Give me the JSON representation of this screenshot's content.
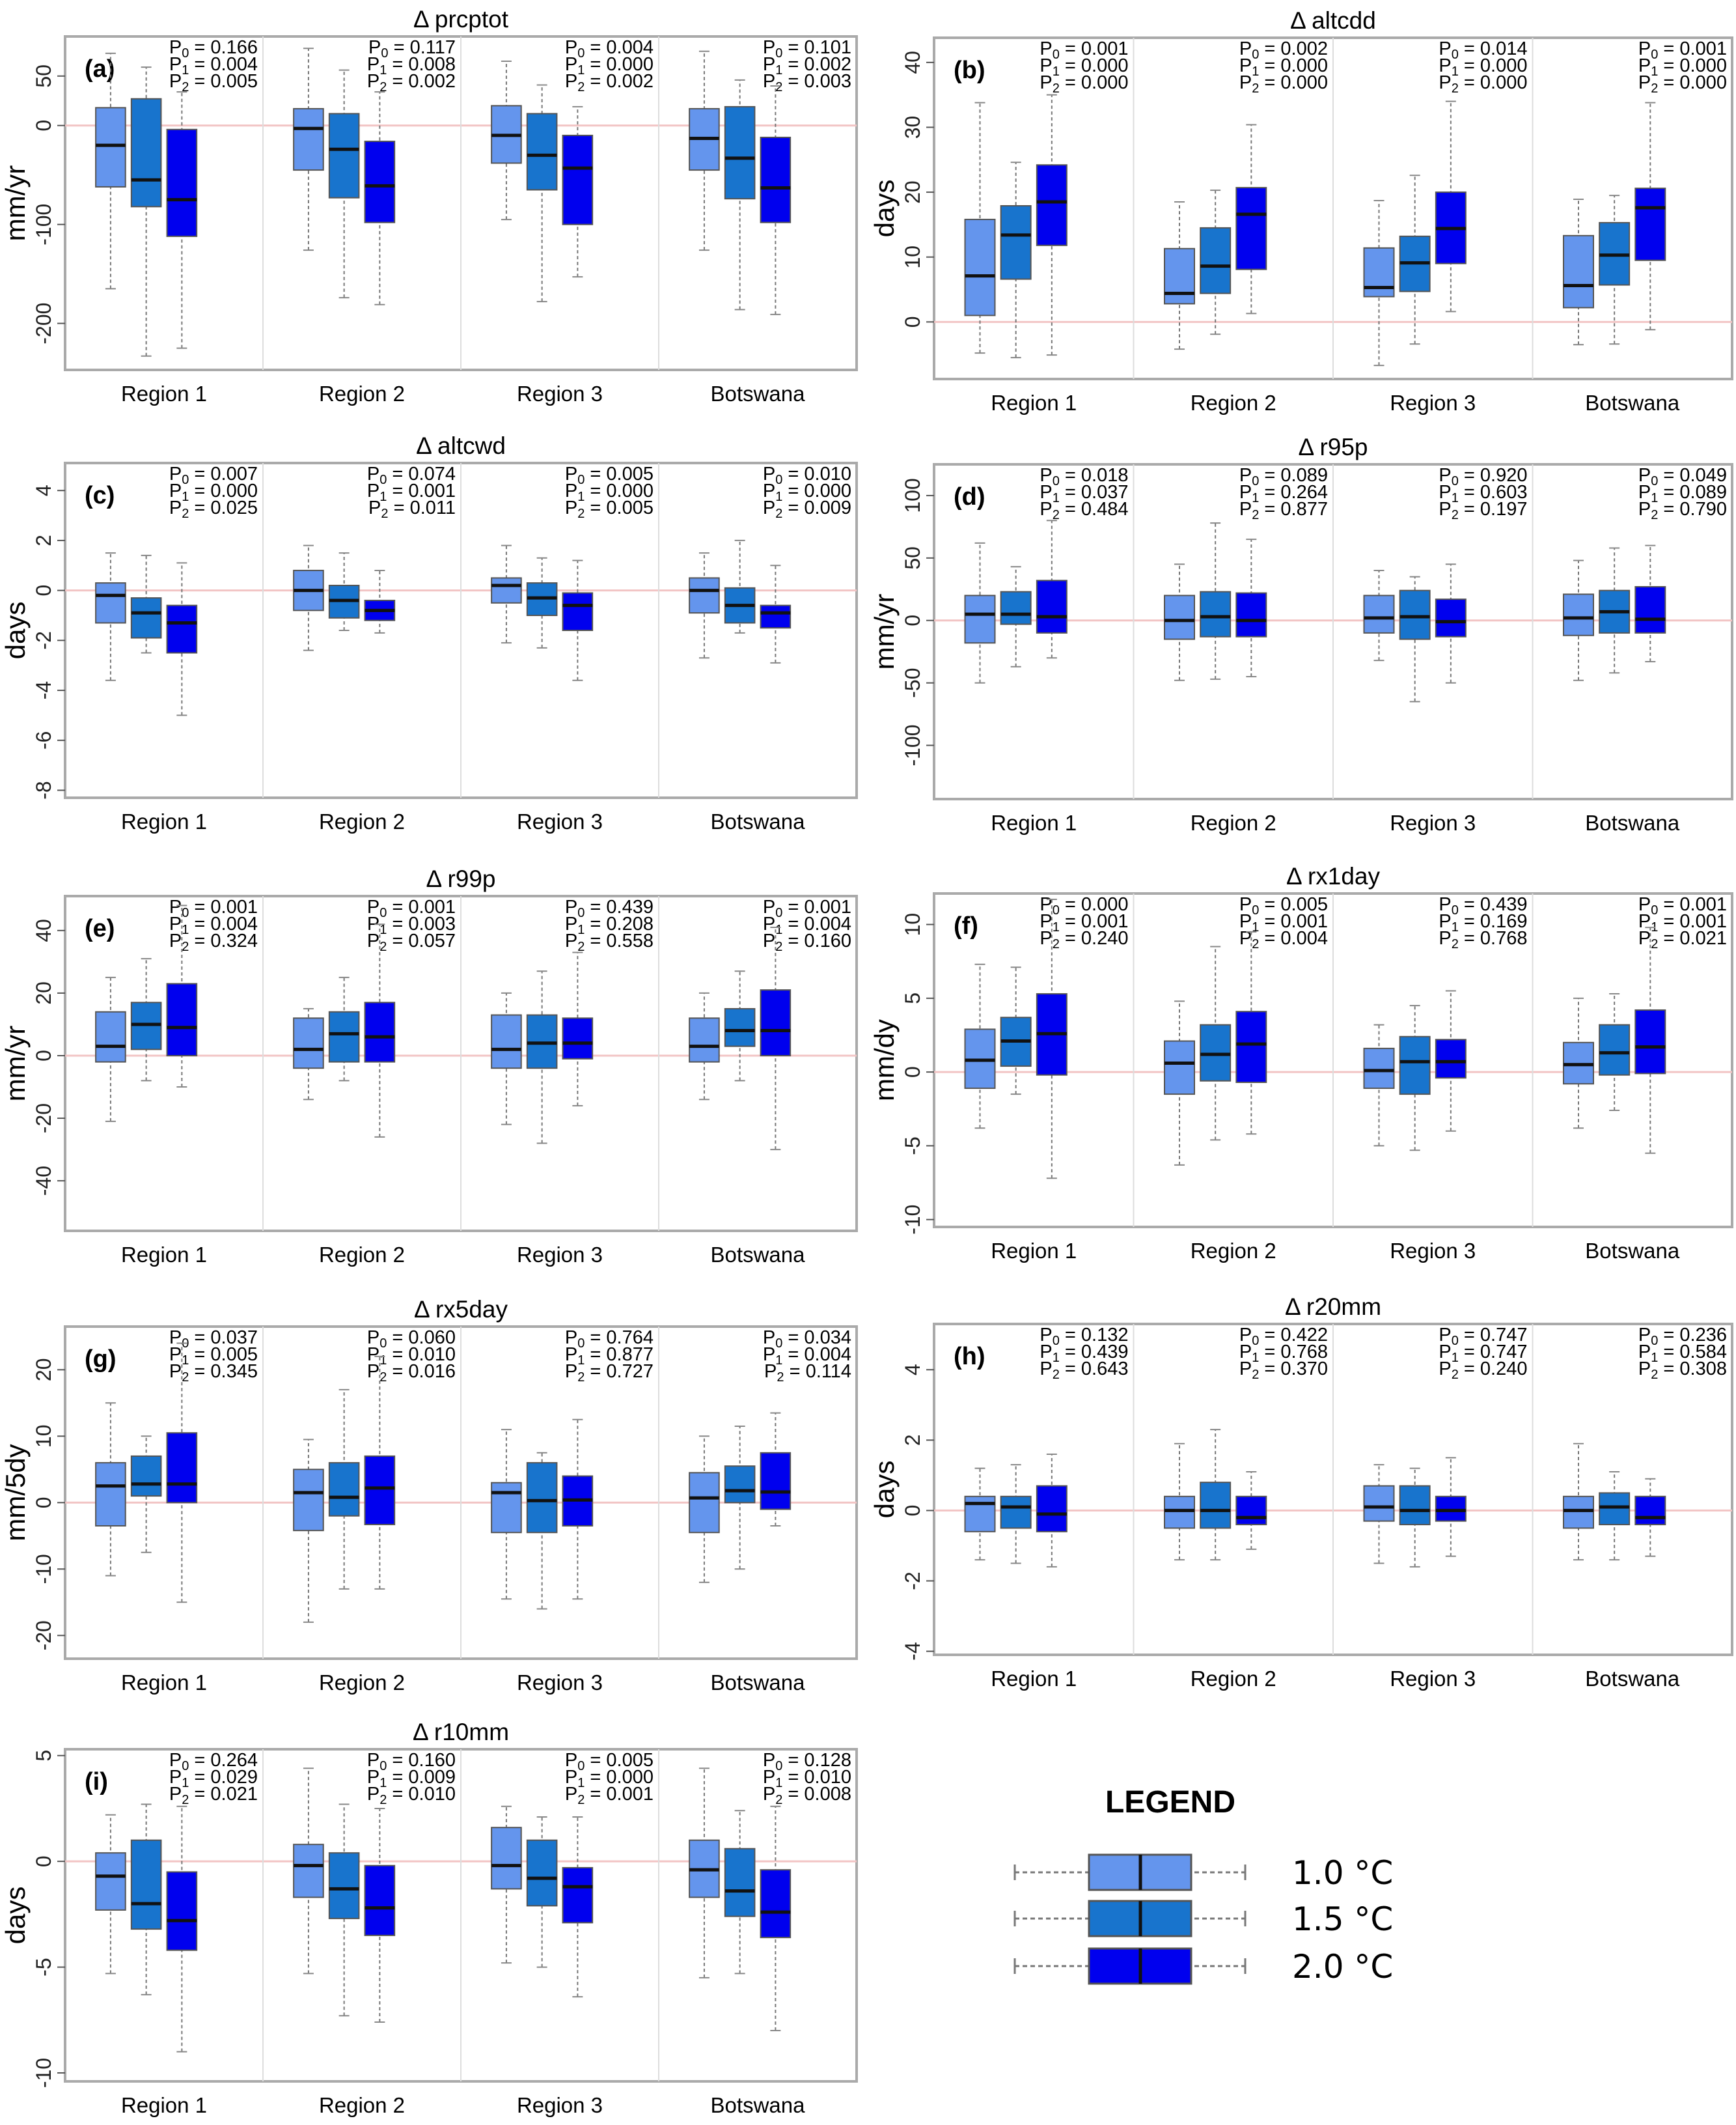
{
  "legend": {
    "title": "LEGEND",
    "items": [
      "1.0 °C",
      "1.5 °C",
      "2.0 °C"
    ]
  },
  "colors": {
    "s1": "#6495ED",
    "s2": "#1874CD",
    "s3": "#0000EE",
    "zero_line": "#F2C4C4"
  },
  "chart_data": [
    {
      "type": "box",
      "panel": "(a)",
      "title": "Δ prcptot",
      "ylabel": "mm/yr",
      "ylim": [
        -247,
        90
      ],
      "yticks": [
        -200,
        -100,
        0,
        50
      ],
      "categories": [
        "Region 1",
        "Region 2",
        "Region 3",
        "Botswana"
      ],
      "series": [
        "1.0 °C",
        "1.5 °C",
        "2.0 °C"
      ],
      "pvalues": [
        [
          "0.166",
          "0.004",
          "0.005"
        ],
        [
          "0.117",
          "0.008",
          "0.002"
        ],
        [
          "0.004",
          "0.000",
          "0.002"
        ],
        [
          "0.101",
          "0.002",
          "0.003"
        ]
      ],
      "boxes": [
        [
          [
            -165,
            -62,
            -20,
            18,
            73
          ],
          [
            -233,
            -82,
            -55,
            27,
            59
          ],
          [
            -225,
            -112,
            -75,
            -4,
            34
          ]
        ],
        [
          [
            -126,
            -45,
            -3,
            17,
            78
          ],
          [
            -174,
            -73,
            -24,
            12,
            56
          ],
          [
            -181,
            -98,
            -61,
            -16,
            34
          ]
        ],
        [
          [
            -95,
            -38,
            -10,
            20,
            65
          ],
          [
            -178,
            -65,
            -30,
            12,
            41
          ],
          [
            -153,
            -100,
            -43,
            -10,
            19
          ]
        ],
        [
          [
            -126,
            -45,
            -13,
            17,
            75
          ],
          [
            -186,
            -74,
            -33,
            19,
            46
          ],
          [
            -191,
            -98,
            -63,
            -12,
            40
          ]
        ]
      ]
    },
    {
      "type": "box",
      "panel": "(b)",
      "title": "Δ altcdd",
      "ylabel": "days",
      "ylim": [
        -8.8,
        43.8
      ],
      "yticks": [
        0,
        10,
        20,
        30,
        40
      ],
      "categories": [
        "Region 1",
        "Region 2",
        "Region 3",
        "Botswana"
      ],
      "series": [
        "1.0 °C",
        "1.5 °C",
        "2.0 °C"
      ],
      "pvalues": [
        [
          "0.001",
          "0.000",
          "0.000"
        ],
        [
          "0.002",
          "0.000",
          "0.000"
        ],
        [
          "0.014",
          "0.000",
          "0.000"
        ],
        [
          "0.001",
          "0.000",
          "0.000"
        ]
      ],
      "boxes": [
        [
          [
            -4.8,
            1,
            7.1,
            15.8,
            33.8
          ],
          [
            -5.5,
            6.6,
            13.4,
            17.9,
            24.6
          ],
          [
            -5.1,
            11.8,
            18.5,
            24.2,
            35
          ]
        ],
        [
          [
            -4.2,
            2.8,
            4.4,
            11.3,
            18.5
          ],
          [
            -1.9,
            4.4,
            8.6,
            14.5,
            20.3
          ],
          [
            1.3,
            8.1,
            16.6,
            20.7,
            30.4
          ]
        ],
        [
          [
            -6.7,
            3.9,
            5.3,
            11.4,
            18.7
          ],
          [
            -3.4,
            4.7,
            9.1,
            13.2,
            22.6
          ],
          [
            1.6,
            9,
            14.4,
            20,
            34
          ]
        ],
        [
          [
            -3.5,
            2.2,
            5.6,
            13.3,
            18.9
          ],
          [
            -3.4,
            5.7,
            10.3,
            15.3,
            19.5
          ],
          [
            -1.2,
            9.5,
            17.6,
            20.6,
            33.8
          ]
        ]
      ]
    },
    {
      "type": "box",
      "panel": "(c)",
      "title": "Δ altcwd",
      "ylabel": "days",
      "ylim": [
        -8.3,
        5.1
      ],
      "yticks": [
        4,
        2,
        0,
        -2,
        -4,
        -6,
        -8
      ],
      "categories": [
        "Region 1",
        "Region 2",
        "Region 3",
        "Botswana"
      ],
      "series": [
        "1.0 °C",
        "1.5 °C",
        "2.0 °C"
      ],
      "pvalues": [
        [
          "0.007",
          "0.000",
          "0.025"
        ],
        [
          "0.074",
          "0.001",
          "0.011"
        ],
        [
          "0.005",
          "0.000",
          "0.005"
        ],
        [
          "0.010",
          "0.000",
          "0.009"
        ]
      ],
      "boxes": [
        [
          [
            -3.6,
            -1.3,
            -0.2,
            0.3,
            1.5
          ],
          [
            -2.5,
            -1.9,
            -0.9,
            -0.3,
            1.4
          ],
          [
            -5,
            -2.5,
            -1.3,
            -0.6,
            1.1
          ]
        ],
        [
          [
            -2.4,
            -0.8,
            0,
            0.8,
            1.8
          ],
          [
            -1.6,
            -1.1,
            -0.4,
            0.2,
            1.5
          ],
          [
            -1.7,
            -1.2,
            -0.8,
            -0.4,
            0.8
          ]
        ],
        [
          [
            -2.1,
            -0.5,
            0.2,
            0.5,
            1.8
          ],
          [
            -2.3,
            -1,
            -0.3,
            0.3,
            1.3
          ],
          [
            -3.6,
            -1.6,
            -0.6,
            -0.1,
            1.2
          ]
        ],
        [
          [
            -2.7,
            -0.9,
            0,
            0.5,
            1.5
          ],
          [
            -1.7,
            -1.3,
            -0.6,
            0.1,
            2
          ],
          [
            -2.9,
            -1.5,
            -0.9,
            -0.6,
            1
          ]
        ]
      ]
    },
    {
      "type": "box",
      "panel": "(d)",
      "title": "Δ r95p",
      "ylabel": "mm/yr",
      "ylim": [
        -143,
        125
      ],
      "yticks": [
        100,
        50,
        0,
        -50,
        -100
      ],
      "categories": [
        "Region 1",
        "Region 2",
        "Region 3",
        "Botswana"
      ],
      "series": [
        "1.0 °C",
        "1.5 °C",
        "2.0 °C"
      ],
      "pvalues": [
        [
          "0.018",
          "0.037",
          "0.484"
        ],
        [
          "0.089",
          "0.264",
          "0.877"
        ],
        [
          "0.920",
          "0.603",
          "0.197"
        ],
        [
          "0.049",
          "0.089",
          "0.790"
        ]
      ],
      "boxes": [
        [
          [
            -50,
            -18,
            5,
            20,
            62
          ],
          [
            -37,
            -3,
            5,
            23,
            43
          ],
          [
            -30,
            -10,
            3,
            32,
            80
          ]
        ],
        [
          [
            -48,
            -15,
            0,
            20,
            45
          ],
          [
            -47,
            -13,
            3,
            23,
            78
          ],
          [
            -45,
            -13,
            0,
            22,
            65
          ]
        ],
        [
          [
            -32,
            -10,
            2,
            20,
            40
          ],
          [
            -65,
            -15,
            3,
            24,
            35
          ],
          [
            -50,
            -13,
            -1,
            17,
            45
          ]
        ],
        [
          [
            -48,
            -12,
            2,
            21,
            48
          ],
          [
            -42,
            -10,
            7,
            24,
            58
          ],
          [
            -33,
            -10,
            1,
            27,
            60
          ]
        ]
      ]
    },
    {
      "type": "box",
      "panel": "(e)",
      "title": "Δ r99p",
      "ylabel": "mm/yr",
      "ylim": [
        -56,
        51
      ],
      "yticks": [
        40,
        20,
        0,
        -20,
        -40
      ],
      "categories": [
        "Region 1",
        "Region 2",
        "Region 3",
        "Botswana"
      ],
      "series": [
        "1.0 °C",
        "1.5 °C",
        "2.0 °C"
      ],
      "pvalues": [
        [
          "0.001",
          "0.004",
          "0.324"
        ],
        [
          "0.001",
          "0.003",
          "0.057"
        ],
        [
          "0.439",
          "0.208",
          "0.558"
        ],
        [
          "0.001",
          "0.004",
          "0.160"
        ]
      ],
      "boxes": [
        [
          [
            -21,
            -2,
            3,
            14,
            25
          ],
          [
            -8,
            2,
            10,
            17,
            31
          ],
          [
            -10,
            0,
            9,
            23,
            48
          ]
        ],
        [
          [
            -14,
            -4,
            2,
            12,
            15
          ],
          [
            -8,
            -2,
            7,
            14,
            25
          ],
          [
            -26,
            -2,
            6,
            17,
            42
          ]
        ],
        [
          [
            -22,
            -4,
            2,
            13,
            20
          ],
          [
            -28,
            -4,
            4,
            13,
            27
          ],
          [
            -16,
            -1,
            4,
            12,
            33
          ]
        ],
        [
          [
            -14,
            -2,
            3,
            12,
            20
          ],
          [
            -8,
            3,
            8,
            15,
            27
          ],
          [
            -30,
            0,
            8,
            21,
            41
          ]
        ]
      ]
    },
    {
      "type": "box",
      "panel": "(f)",
      "title": "Δ rx1day",
      "ylabel": "mm/dy",
      "ylim": [
        -10.5,
        12.1
      ],
      "yticks": [
        10,
        5,
        0,
        -5,
        -10
      ],
      "categories": [
        "Region 1",
        "Region 2",
        "Region 3",
        "Botswana"
      ],
      "series": [
        "1.0 °C",
        "1.5 °C",
        "2.0 °C"
      ],
      "pvalues": [
        [
          "0.000",
          "0.001",
          "0.240"
        ],
        [
          "0.005",
          "0.001",
          "0.004"
        ],
        [
          "0.439",
          "0.169",
          "0.768"
        ],
        [
          "0.001",
          "0.001",
          "0.021"
        ]
      ],
      "boxes": [
        [
          [
            -3.8,
            -1.1,
            0.8,
            2.9,
            7.3
          ],
          [
            -1.5,
            0.4,
            2.1,
            3.7,
            7.1
          ],
          [
            -7.2,
            -0.2,
            2.6,
            5.3,
            11.7
          ]
        ],
        [
          [
            -6.3,
            -1.5,
            0.6,
            2.1,
            4.8
          ],
          [
            -4.6,
            -0.6,
            1.2,
            3.2,
            8.5
          ],
          [
            -4.2,
            -0.7,
            1.9,
            4.1,
            9.5
          ]
        ],
        [
          [
            -5,
            -1.1,
            0.1,
            1.6,
            3.2
          ],
          [
            -5.3,
            -1.5,
            0.7,
            2.4,
            4.5
          ],
          [
            -4,
            -0.4,
            0.7,
            2.2,
            5.5
          ]
        ],
        [
          [
            -3.8,
            -0.8,
            0.5,
            2,
            5
          ],
          [
            -2.6,
            -0.2,
            1.3,
            3.2,
            5.3
          ],
          [
            -5.5,
            -0.1,
            1.7,
            4.2,
            9.8
          ]
        ]
      ]
    },
    {
      "type": "box",
      "panel": "(g)",
      "title": "Δ rx5day",
      "ylabel": "mm/5dy",
      "ylim": [
        -23.5,
        26.5
      ],
      "yticks": [
        20,
        10,
        0,
        -10,
        -20
      ],
      "categories": [
        "Region 1",
        "Region 2",
        "Region 3",
        "Botswana"
      ],
      "series": [
        "1.0 °C",
        "1.5 °C",
        "2.0 °C"
      ],
      "pvalues": [
        [
          "0.037",
          "0.005",
          "0.345"
        ],
        [
          "0.060",
          "0.010",
          "0.016"
        ],
        [
          "0.764",
          "0.877",
          "0.727"
        ],
        [
          "0.034",
          "0.004",
          "0.114"
        ]
      ],
      "boxes": [
        [
          [
            -11,
            -3.5,
            2.5,
            6,
            15
          ],
          [
            -7.5,
            1,
            2.8,
            7,
            10
          ],
          [
            -15,
            0,
            2.8,
            10.5,
            24
          ]
        ],
        [
          [
            -18,
            -4.2,
            1.5,
            5,
            9.5
          ],
          [
            -13,
            -2,
            0.8,
            6,
            17
          ],
          [
            -13,
            -3.3,
            2.2,
            7,
            22
          ]
        ],
        [
          [
            -14.5,
            -4.5,
            1.5,
            3,
            11
          ],
          [
            -16,
            -4.5,
            0.3,
            6,
            7.5
          ],
          [
            -14.5,
            -3.5,
            0.4,
            4,
            12.5
          ]
        ],
        [
          [
            -12,
            -4.5,
            0.7,
            4.5,
            10
          ],
          [
            -10,
            0,
            1.8,
            5.5,
            11.5
          ],
          [
            -3.5,
            -1,
            1.6,
            7.5,
            13.5
          ]
        ]
      ]
    },
    {
      "type": "box",
      "panel": "(h)",
      "title": "Δ r20mm",
      "ylabel": "days",
      "ylim": [
        -4.1,
        5.3
      ],
      "yticks": [
        4,
        2,
        0,
        -2,
        -4
      ],
      "categories": [
        "Region 1",
        "Region 2",
        "Region 3",
        "Botswana"
      ],
      "series": [
        "1.0 °C",
        "1.5 °C",
        "2.0 °C"
      ],
      "pvalues": [
        [
          "0.132",
          "0.439",
          "0.643"
        ],
        [
          "0.422",
          "0.768",
          "0.370"
        ],
        [
          "0.747",
          "0.747",
          "0.240"
        ],
        [
          "0.236",
          "0.584",
          "0.308"
        ]
      ],
      "boxes": [
        [
          [
            -1.4,
            -0.6,
            0.2,
            0.4,
            1.2
          ],
          [
            -1.5,
            -0.5,
            0.1,
            0.4,
            1.3
          ],
          [
            -1.6,
            -0.6,
            -0.1,
            0.7,
            1.6
          ]
        ],
        [
          [
            -1.4,
            -0.5,
            0,
            0.4,
            1.9
          ],
          [
            -1.4,
            -0.5,
            0,
            0.8,
            2.3
          ],
          [
            -1.1,
            -0.4,
            -0.2,
            0.4,
            1.1
          ]
        ],
        [
          [
            -1.5,
            -0.3,
            0.1,
            0.7,
            1.3
          ],
          [
            -1.6,
            -0.4,
            0,
            0.7,
            1.2
          ],
          [
            -1.3,
            -0.3,
            0,
            0.4,
            1.5
          ]
        ],
        [
          [
            -1.4,
            -0.5,
            0,
            0.4,
            1.9
          ],
          [
            -1.4,
            -0.4,
            0.1,
            0.5,
            1.1
          ],
          [
            -1.3,
            -0.4,
            -0.2,
            0.4,
            0.9
          ]
        ]
      ]
    },
    {
      "type": "box",
      "panel": "(i)",
      "title": "Δ r10mm",
      "ylabel": "days",
      "ylim": [
        -10.4,
        5.3
      ],
      "yticks": [
        5,
        0,
        -5,
        -10
      ],
      "categories": [
        "Region 1",
        "Region 2",
        "Region 3",
        "Botswana"
      ],
      "series": [
        "1.0 °C",
        "1.5 °C",
        "2.0 °C"
      ],
      "pvalues": [
        [
          "0.264",
          "0.029",
          "0.021"
        ],
        [
          "0.160",
          "0.009",
          "0.010"
        ],
        [
          "0.005",
          "0.000",
          "0.001"
        ],
        [
          "0.128",
          "0.010",
          "0.008"
        ]
      ],
      "boxes": [
        [
          [
            -5.3,
            -2.3,
            -0.7,
            0.4,
            2.2
          ],
          [
            -6.3,
            -3.2,
            -2,
            1,
            2.7
          ],
          [
            -9,
            -4.2,
            -2.8,
            -0.5,
            2.6
          ]
        ],
        [
          [
            -5.3,
            -1.7,
            -0.2,
            0.8,
            4.4
          ],
          [
            -7.3,
            -2.7,
            -1.3,
            0.4,
            2.7
          ],
          [
            -7.6,
            -3.5,
            -2.2,
            -0.2,
            2.5
          ]
        ],
        [
          [
            -4.8,
            -1.3,
            -0.2,
            1.6,
            2.6
          ],
          [
            -5,
            -2.1,
            -0.8,
            1,
            2.1
          ],
          [
            -6.4,
            -2.9,
            -1.2,
            -0.3,
            2.1
          ]
        ],
        [
          [
            -5.5,
            -1.7,
            -0.4,
            1,
            4.4
          ],
          [
            -5.3,
            -2.6,
            -1.4,
            0.6,
            2.4
          ],
          [
            -8,
            -3.6,
            -2.4,
            -0.4,
            2.6
          ]
        ]
      ]
    }
  ]
}
